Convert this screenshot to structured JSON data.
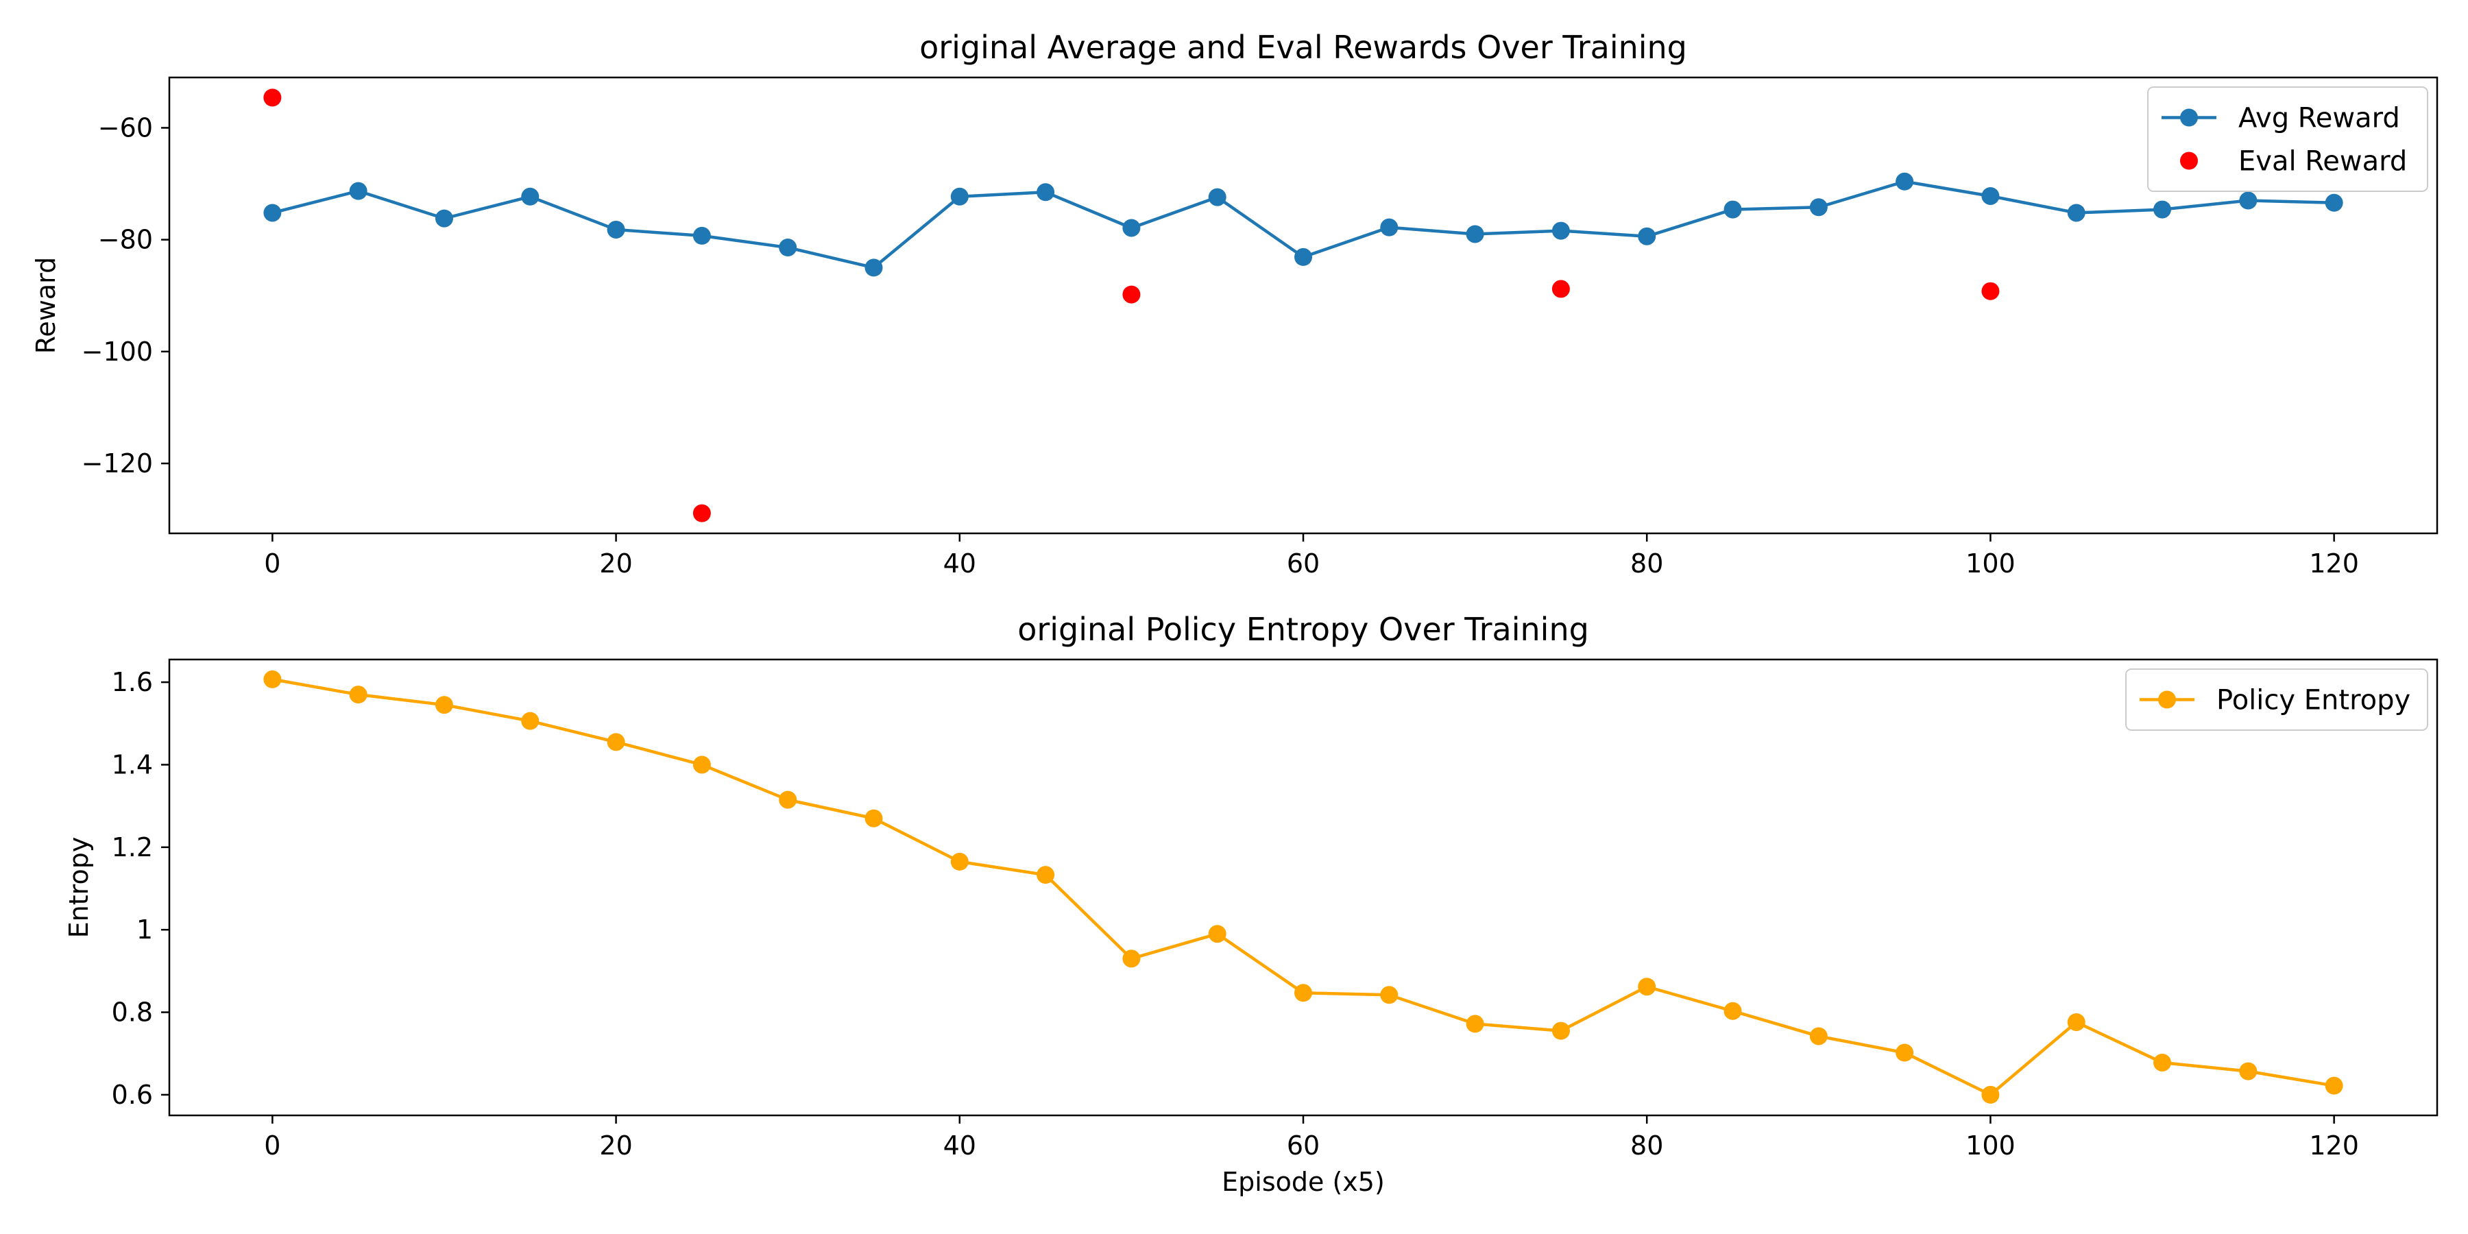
{
  "chart_data": [
    {
      "type": "line",
      "title": "original Average and Eval Rewards Over Training",
      "xlabel": "",
      "ylabel": "Reward",
      "xlim": [
        -6,
        126
      ],
      "ylim": [
        -132.5,
        -51
      ],
      "xticks": [
        0,
        20,
        40,
        60,
        80,
        100,
        120
      ],
      "yticks": [
        -60,
        -80,
        -100,
        -120
      ],
      "legend_position": "top-right",
      "grid": false,
      "series": [
        {
          "name": "Avg Reward",
          "style": "line-marker",
          "color": "#1f77b4",
          "x": [
            0,
            5,
            10,
            15,
            20,
            25,
            30,
            35,
            40,
            45,
            50,
            55,
            60,
            65,
            70,
            75,
            80,
            85,
            90,
            95,
            100,
            105,
            110,
            115,
            120
          ],
          "y": [
            -75.2,
            -71.3,
            -76.2,
            -72.3,
            -78.2,
            -79.3,
            -81.4,
            -85.0,
            -72.3,
            -71.5,
            -77.9,
            -72.4,
            -83.1,
            -77.8,
            -79.0,
            -78.4,
            -79.4,
            -74.6,
            -74.2,
            -69.6,
            -72.2,
            -75.2,
            -74.6,
            -73.0,
            -73.4
          ]
        },
        {
          "name": "Eval Reward",
          "style": "marker",
          "color": "#ff0000",
          "x": [
            0,
            25,
            50,
            75,
            100
          ],
          "y": [
            -54.6,
            -128.9,
            -89.8,
            -88.8,
            -89.2
          ]
        }
      ]
    },
    {
      "type": "line",
      "title": "original Policy Entropy Over Training",
      "xlabel": "Episode (x5)",
      "ylabel": "Entropy",
      "xlim": [
        -6,
        126
      ],
      "ylim": [
        0.55,
        1.655
      ],
      "xticks": [
        0,
        20,
        40,
        60,
        80,
        100,
        120
      ],
      "yticks": [
        0.6,
        0.8,
        1.0,
        1.2,
        1.4,
        1.6
      ],
      "legend_position": "top-right",
      "grid": false,
      "series": [
        {
          "name": "Policy Entropy",
          "style": "line-marker",
          "color": "#ffa500",
          "x": [
            0,
            5,
            10,
            15,
            20,
            25,
            30,
            35,
            40,
            45,
            50,
            55,
            60,
            65,
            70,
            75,
            80,
            85,
            90,
            95,
            100,
            105,
            110,
            115,
            120
          ],
          "y": [
            1.607,
            1.57,
            1.545,
            1.506,
            1.455,
            1.4,
            1.315,
            1.27,
            1.165,
            1.133,
            0.93,
            0.99,
            0.847,
            0.842,
            0.772,
            0.755,
            0.862,
            0.803,
            0.742,
            0.702,
            0.6,
            0.776,
            0.678,
            0.657,
            0.622
          ]
        }
      ]
    }
  ]
}
